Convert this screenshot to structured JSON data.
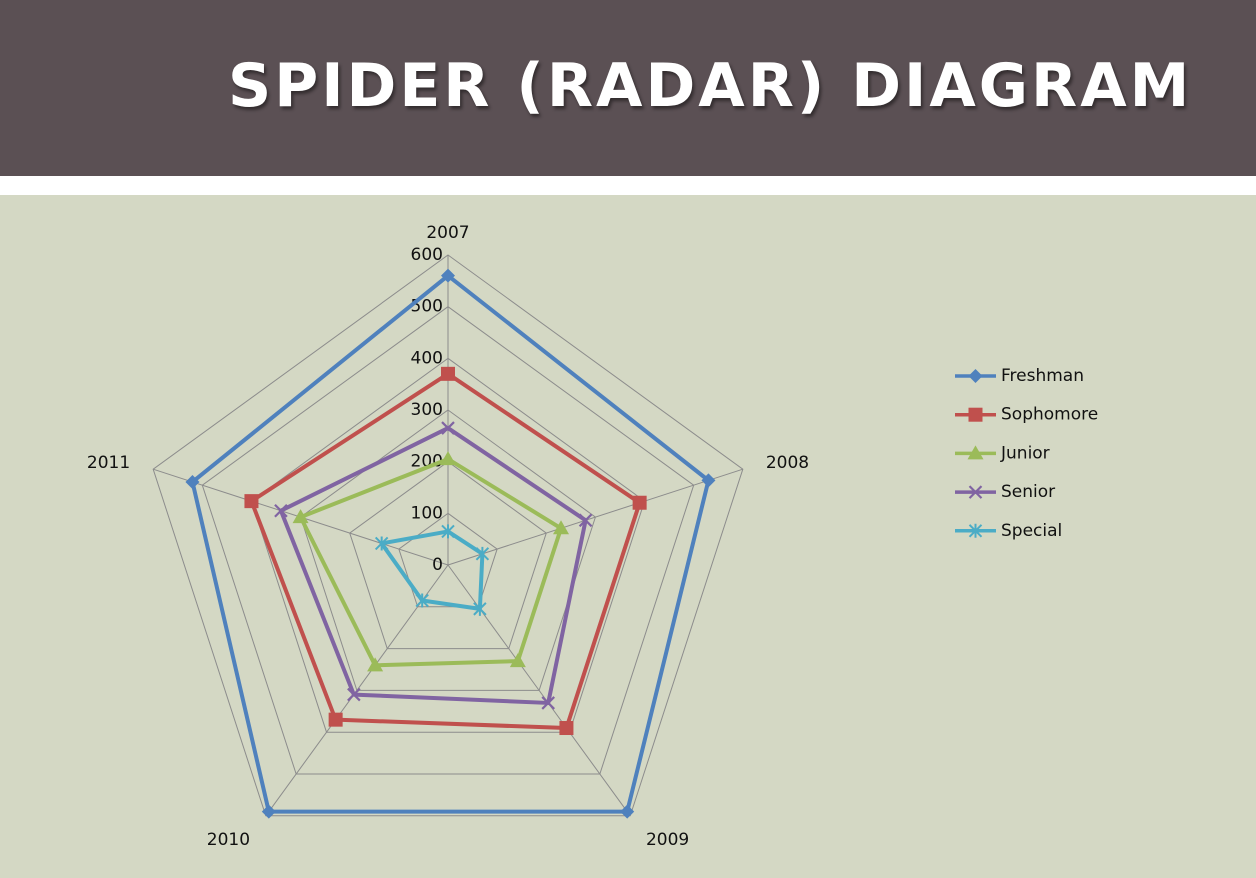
{
  "slide": {
    "title": "SPIDER (RADAR) DIAGRAM"
  },
  "chart_data": {
    "type": "radar",
    "categories": [
      "2007",
      "2008",
      "2009",
      "2010",
      "2011"
    ],
    "rlim": [
      0,
      600
    ],
    "ticks": [
      0,
      100,
      200,
      300,
      400,
      500,
      600
    ],
    "grid": true,
    "legend_position": "right",
    "series": [
      {
        "name": "Freshman",
        "color": "#4f81bd",
        "marker": "diamond",
        "values": [
          560,
          530,
          590,
          590,
          520
        ]
      },
      {
        "name": "Sophomore",
        "color": "#c0504d",
        "marker": "square",
        "values": [
          370,
          390,
          390,
          370,
          400
        ]
      },
      {
        "name": "Junior",
        "color": "#9bbb59",
        "marker": "triangle",
        "values": [
          205,
          230,
          230,
          240,
          300
        ]
      },
      {
        "name": "Senior",
        "color": "#8064a2",
        "marker": "x",
        "values": [
          265,
          280,
          330,
          310,
          340
        ]
      },
      {
        "name": "Special",
        "color": "#4bacc6",
        "marker": "star",
        "values": [
          65,
          70,
          105,
          85,
          135
        ]
      }
    ]
  }
}
